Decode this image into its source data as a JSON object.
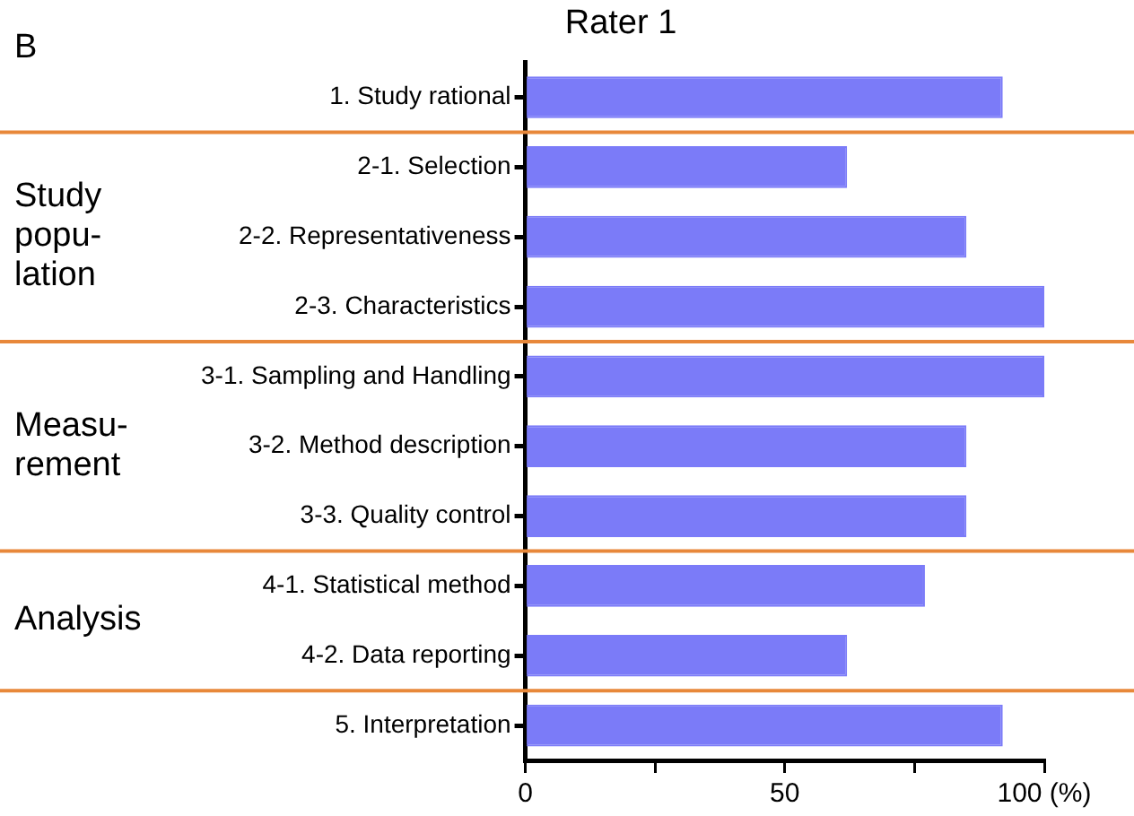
{
  "chart_data": {
    "type": "bar",
    "orientation": "horizontal",
    "title": "Rater 1",
    "categories": [
      "1. Study rational",
      "2-1. Selection",
      "2-2. Representativeness",
      "2-3. Characteristics",
      "3-1. Sampling and Handling",
      "3-2. Method description",
      "3-3. Quality control",
      "4-1. Statistical method",
      "4-2. Data reporting",
      "5. Interpretation"
    ],
    "series": [
      {
        "color": "#7b7bf8",
        "values": [
          92,
          62,
          85,
          100,
          100,
          85,
          85,
          77,
          62,
          92
        ]
      }
    ],
    "xlim": [
      0,
      100
    ],
    "xticks": [
      0,
      {
        "value": 25,
        "label": null
      },
      50,
      {
        "value": 75,
        "label": null
      },
      {
        "value": 100,
        "label": "100 (%)"
      }
    ],
    "annotations": [
      "B",
      "Study\npopu-\nlation",
      "Measu-\nrement",
      "Analysis"
    ],
    "grid": false
  }
}
